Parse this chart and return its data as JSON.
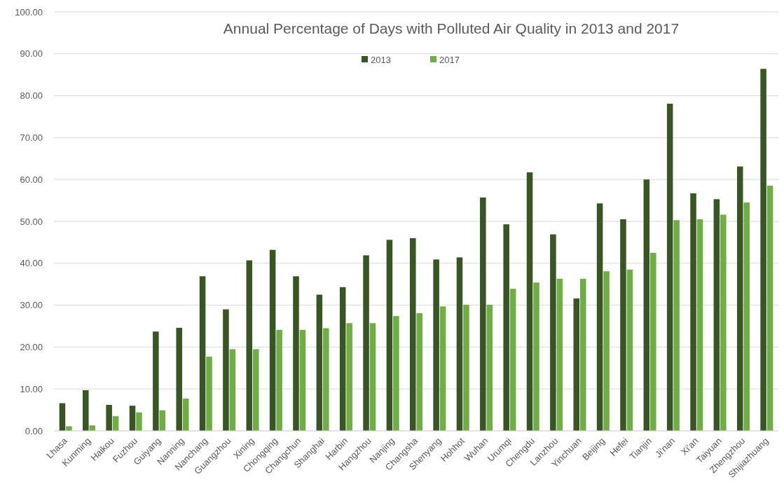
{
  "chart_data": {
    "type": "bar",
    "title": "Annual Percentage of Days with Polluted Air Quality in 2013 and 2017",
    "categories": [
      "Lhasa",
      "Kunming",
      "Haikou",
      "Fuzhou",
      "Guiyang",
      "Nanning",
      "Nanchang",
      "Guangzhou",
      "Xining",
      "Chongqing",
      "Changchun",
      "Shanghai",
      "Harbin",
      "Hangzhou",
      "Nanjing",
      "Changsha",
      "Shenyang",
      "Hohhot",
      "Wuhan",
      "Urumqi",
      "Chengdu",
      "Lanzhou",
      "Yinchuan",
      "Beijing",
      "Hefei",
      "Tianjin",
      "Ji'nan",
      "Xi'an",
      "Taiyuan",
      "Zhengzhou",
      "Shijiazhuang"
    ],
    "series": [
      {
        "name": "2013",
        "color": "#375623",
        "values": [
          6.6,
          9.7,
          6.2,
          6.0,
          23.7,
          24.6,
          36.9,
          29.0,
          40.7,
          43.2,
          36.9,
          32.5,
          34.3,
          41.9,
          45.6,
          46.0,
          40.9,
          41.4,
          55.7,
          49.3,
          61.7,
          46.9,
          31.6,
          54.3,
          50.5,
          60.0,
          78.1,
          56.7,
          55.3,
          63.1,
          86.4
        ]
      },
      {
        "name": "2017",
        "color": "#70ad47",
        "values": [
          1.1,
          1.3,
          3.5,
          4.4,
          4.9,
          7.7,
          17.7,
          19.5,
          19.5,
          24.1,
          24.1,
          24.5,
          25.7,
          25.7,
          27.4,
          28.1,
          29.7,
          30.1,
          30.1,
          33.9,
          35.4,
          36.3,
          36.3,
          38.1,
          38.5,
          42.5,
          50.3,
          50.5,
          51.6,
          54.5,
          58.5
        ]
      }
    ],
    "ylim": [
      0,
      100
    ],
    "yticks": [
      {
        "value": 0,
        "label": "0.00"
      },
      {
        "value": 10,
        "label": "10.00"
      },
      {
        "value": 20,
        "label": "20.00"
      },
      {
        "value": 30,
        "label": "30.00"
      },
      {
        "value": 40,
        "label": "40.00"
      },
      {
        "value": 50,
        "label": "50.00"
      },
      {
        "value": 60,
        "label": "60.00"
      },
      {
        "value": 70,
        "label": "70.00"
      },
      {
        "value": 80,
        "label": "80.00"
      },
      {
        "value": 90,
        "label": "90.00"
      },
      {
        "value": 100,
        "label": "100.00"
      }
    ],
    "grid": "y",
    "legend": "top"
  }
}
